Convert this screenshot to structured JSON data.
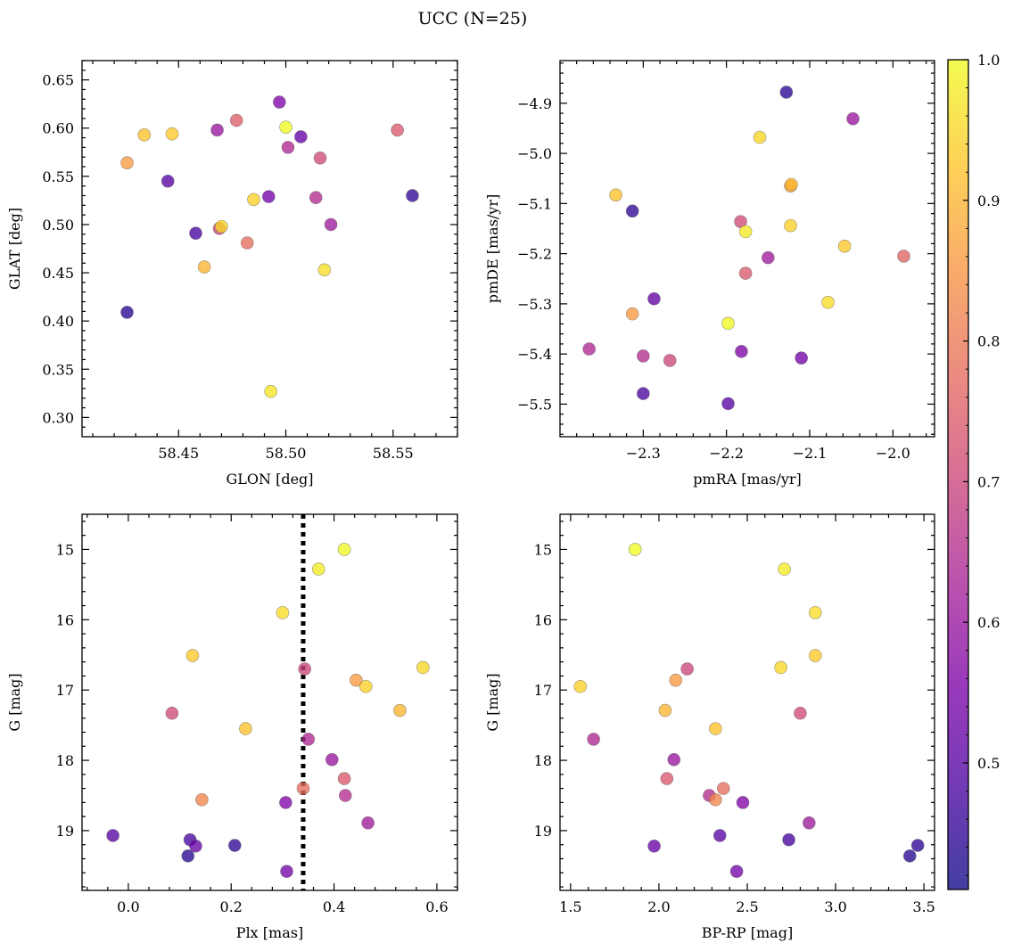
{
  "suptitle": "UCC (N=25)",
  "colorbar": {
    "colormap": "plasma",
    "range": [
      0.41,
      1.0
    ],
    "ticks": [
      0.5,
      0.6,
      0.7,
      0.8,
      0.9,
      1.0
    ],
    "tick_labels": [
      "0.5",
      "0.6",
      "0.7",
      "0.8",
      "0.9",
      "1.0"
    ]
  },
  "chart_data": [
    {
      "type": "scatter",
      "xlabel": "GLON [deg]",
      "ylabel": "GLAT [deg]",
      "xlim": [
        58.405,
        58.58
      ],
      "ylim": [
        0.28,
        0.67
      ],
      "xticks": [
        58.45,
        58.5,
        58.55
      ],
      "xtick_labels": [
        "58.45",
        "58.50",
        "58.55"
      ],
      "yticks": [
        0.3,
        0.35,
        0.4,
        0.45,
        0.5,
        0.55,
        0.6,
        0.65
      ],
      "ytick_labels": [
        "0.30",
        "0.35",
        "0.40",
        "0.45",
        "0.50",
        "0.55",
        "0.60",
        "0.65"
      ],
      "invert_y": false,
      "points": [
        {
          "x": 58.426,
          "y": 0.409,
          "c": 0.44
        },
        {
          "x": 58.559,
          "y": 0.53,
          "c": 0.45
        },
        {
          "x": 58.458,
          "y": 0.491,
          "c": 0.48
        },
        {
          "x": 58.445,
          "y": 0.545,
          "c": 0.5
        },
        {
          "x": 58.507,
          "y": 0.591,
          "c": 0.52
        },
        {
          "x": 58.492,
          "y": 0.529,
          "c": 0.54
        },
        {
          "x": 58.497,
          "y": 0.627,
          "c": 0.56
        },
        {
          "x": 58.468,
          "y": 0.598,
          "c": 0.6
        },
        {
          "x": 58.521,
          "y": 0.5,
          "c": 0.61
        },
        {
          "x": 58.501,
          "y": 0.58,
          "c": 0.64
        },
        {
          "x": 58.514,
          "y": 0.528,
          "c": 0.65
        },
        {
          "x": 58.469,
          "y": 0.496,
          "c": 0.7
        },
        {
          "x": 58.516,
          "y": 0.569,
          "c": 0.71
        },
        {
          "x": 58.552,
          "y": 0.598,
          "c": 0.74
        },
        {
          "x": 58.477,
          "y": 0.608,
          "c": 0.75
        },
        {
          "x": 58.482,
          "y": 0.481,
          "c": 0.78
        },
        {
          "x": 58.426,
          "y": 0.564,
          "c": 0.86
        },
        {
          "x": 58.462,
          "y": 0.456,
          "c": 0.9
        },
        {
          "x": 58.434,
          "y": 0.593,
          "c": 0.92
        },
        {
          "x": 58.447,
          "y": 0.594,
          "c": 0.93
        },
        {
          "x": 58.485,
          "y": 0.526,
          "c": 0.94
        },
        {
          "x": 58.47,
          "y": 0.498,
          "c": 0.95
        },
        {
          "x": 58.518,
          "y": 0.453,
          "c": 0.96
        },
        {
          "x": 58.493,
          "y": 0.327,
          "c": 0.97
        },
        {
          "x": 58.5,
          "y": 0.601,
          "c": 1.0
        }
      ]
    },
    {
      "type": "scatter",
      "xlabel": "pmRA [mas/yr]",
      "ylabel": "pmDE [mas/yr]",
      "xlim": [
        -2.4,
        -1.95
      ],
      "ylim": [
        -5.565,
        -4.815
      ],
      "xticks": [
        -2.3,
        -2.2,
        -2.1,
        -2.0
      ],
      "xtick_labels": [
        "−2.3",
        "−2.2",
        "−2.1",
        "−2.0"
      ],
      "yticks": [
        -5.5,
        -5.4,
        -5.3,
        -5.2,
        -5.1,
        -5.0,
        -4.9
      ],
      "ytick_labels": [
        "−5.5",
        "−5.4",
        "−5.3",
        "−5.2",
        "−5.1",
        "−5.0",
        "−4.9"
      ],
      "invert_y": false,
      "points": [
        {
          "x": -2.128,
          "y": -4.878,
          "c": 0.44
        },
        {
          "x": -2.313,
          "y": -5.115,
          "c": 0.45
        },
        {
          "x": -2.3,
          "y": -5.479,
          "c": 0.48
        },
        {
          "x": -2.198,
          "y": -5.499,
          "c": 0.5
        },
        {
          "x": -2.287,
          "y": -5.29,
          "c": 0.52
        },
        {
          "x": -2.11,
          "y": -5.408,
          "c": 0.54
        },
        {
          "x": -2.182,
          "y": -5.395,
          "c": 0.56
        },
        {
          "x": -2.048,
          "y": -4.931,
          "c": 0.6
        },
        {
          "x": -2.15,
          "y": -5.208,
          "c": 0.61
        },
        {
          "x": -2.365,
          "y": -5.39,
          "c": 0.64
        },
        {
          "x": -2.3,
          "y": -5.404,
          "c": 0.65
        },
        {
          "x": -2.268,
          "y": -5.413,
          "c": 0.7
        },
        {
          "x": -2.183,
          "y": -5.136,
          "c": 0.71
        },
        {
          "x": -2.177,
          "y": -5.239,
          "c": 0.74
        },
        {
          "x": -1.987,
          "y": -5.205,
          "c": 0.76
        },
        {
          "x": -2.313,
          "y": -5.32,
          "c": 0.86
        },
        {
          "x": -2.123,
          "y": -5.065,
          "c": 0.88
        },
        {
          "x": -2.122,
          "y": -5.062,
          "c": 0.9
        },
        {
          "x": -2.333,
          "y": -5.083,
          "c": 0.92
        },
        {
          "x": -2.058,
          "y": -5.185,
          "c": 0.93
        },
        {
          "x": -2.123,
          "y": -5.144,
          "c": 0.94
        },
        {
          "x": -2.16,
          "y": -4.968,
          "c": 0.95
        },
        {
          "x": -2.078,
          "y": -5.297,
          "c": 0.96
        },
        {
          "x": -2.177,
          "y": -5.156,
          "c": 0.98
        },
        {
          "x": -2.198,
          "y": -5.339,
          "c": 1.0
        }
      ]
    },
    {
      "type": "scatter",
      "xlabel": "Plx [mas]",
      "ylabel": "G [mag]",
      "xlim": [
        -0.09,
        0.64
      ],
      "ylim": [
        19.85,
        14.5
      ],
      "xticks": [
        0.0,
        0.2,
        0.4,
        0.6
      ],
      "xtick_labels": [
        "0.0",
        "0.2",
        "0.4",
        "0.6"
      ],
      "yticks": [
        15,
        16,
        17,
        18,
        19
      ],
      "ytick_labels": [
        "15",
        "16",
        "17",
        "18",
        "19"
      ],
      "invert_y": true,
      "vline": {
        "x": 0.34,
        "style": "dotted",
        "color": "#000000"
      },
      "points": [
        {
          "x": 0.116,
          "y": 19.36,
          "c": 0.44
        },
        {
          "x": 0.207,
          "y": 19.21,
          "c": 0.45
        },
        {
          "x": 0.12,
          "y": 19.13,
          "c": 0.48
        },
        {
          "x": -0.03,
          "y": 19.07,
          "c": 0.5
        },
        {
          "x": 0.131,
          "y": 19.22,
          "c": 0.52
        },
        {
          "x": 0.308,
          "y": 19.58,
          "c": 0.54
        },
        {
          "x": 0.306,
          "y": 18.6,
          "c": 0.56
        },
        {
          "x": 0.396,
          "y": 17.99,
          "c": 0.6
        },
        {
          "x": 0.466,
          "y": 18.89,
          "c": 0.61
        },
        {
          "x": 0.35,
          "y": 17.7,
          "c": 0.64
        },
        {
          "x": 0.422,
          "y": 18.5,
          "c": 0.65
        },
        {
          "x": 0.343,
          "y": 16.7,
          "c": 0.7
        },
        {
          "x": 0.085,
          "y": 17.33,
          "c": 0.71
        },
        {
          "x": 0.42,
          "y": 18.26,
          "c": 0.74
        },
        {
          "x": 0.34,
          "y": 18.4,
          "c": 0.78
        },
        {
          "x": 0.143,
          "y": 18.56,
          "c": 0.82
        },
        {
          "x": 0.443,
          "y": 16.86,
          "c": 0.86
        },
        {
          "x": 0.528,
          "y": 17.29,
          "c": 0.9
        },
        {
          "x": 0.228,
          "y": 17.55,
          "c": 0.92
        },
        {
          "x": 0.125,
          "y": 16.51,
          "c": 0.93
        },
        {
          "x": 0.462,
          "y": 16.95,
          "c": 0.94
        },
        {
          "x": 0.573,
          "y": 16.68,
          "c": 0.95
        },
        {
          "x": 0.3,
          "y": 15.9,
          "c": 0.96
        },
        {
          "x": 0.37,
          "y": 15.28,
          "c": 0.98
        },
        {
          "x": 0.42,
          "y": 15.0,
          "c": 1.0
        }
      ]
    },
    {
      "type": "scatter",
      "xlabel": "BP-RP [mag]",
      "ylabel": "G [mag]",
      "xlim": [
        1.44,
        3.56
      ],
      "ylim": [
        19.85,
        14.5
      ],
      "xticks": [
        1.5,
        2.0,
        2.5,
        3.0,
        3.5
      ],
      "xtick_labels": [
        "1.5",
        "2.0",
        "2.5",
        "3.0",
        "3.5"
      ],
      "yticks": [
        15,
        16,
        17,
        18,
        19
      ],
      "ytick_labels": [
        "15",
        "16",
        "17",
        "18",
        "19"
      ],
      "invert_y": true,
      "points": [
        {
          "x": 3.42,
          "y": 19.36,
          "c": 0.44
        },
        {
          "x": 3.465,
          "y": 19.21,
          "c": 0.45
        },
        {
          "x": 2.735,
          "y": 19.13,
          "c": 0.48
        },
        {
          "x": 2.345,
          "y": 19.07,
          "c": 0.5
        },
        {
          "x": 1.973,
          "y": 19.22,
          "c": 0.52
        },
        {
          "x": 2.44,
          "y": 19.58,
          "c": 0.54
        },
        {
          "x": 2.475,
          "y": 18.6,
          "c": 0.56
        },
        {
          "x": 2.085,
          "y": 17.99,
          "c": 0.6
        },
        {
          "x": 2.85,
          "y": 18.89,
          "c": 0.61
        },
        {
          "x": 1.63,
          "y": 17.7,
          "c": 0.64
        },
        {
          "x": 2.285,
          "y": 18.5,
          "c": 0.65
        },
        {
          "x": 2.16,
          "y": 16.7,
          "c": 0.7
        },
        {
          "x": 2.8,
          "y": 17.33,
          "c": 0.71
        },
        {
          "x": 2.045,
          "y": 18.26,
          "c": 0.74
        },
        {
          "x": 2.365,
          "y": 18.4,
          "c": 0.78
        },
        {
          "x": 2.32,
          "y": 18.56,
          "c": 0.82
        },
        {
          "x": 2.095,
          "y": 16.86,
          "c": 0.86
        },
        {
          "x": 2.035,
          "y": 17.29,
          "c": 0.9
        },
        {
          "x": 2.32,
          "y": 17.55,
          "c": 0.92
        },
        {
          "x": 2.885,
          "y": 16.51,
          "c": 0.93
        },
        {
          "x": 1.555,
          "y": 16.95,
          "c": 0.94
        },
        {
          "x": 2.69,
          "y": 16.68,
          "c": 0.95
        },
        {
          "x": 2.885,
          "y": 15.9,
          "c": 0.96
        },
        {
          "x": 2.71,
          "y": 15.28,
          "c": 0.98
        },
        {
          "x": 1.865,
          "y": 15.0,
          "c": 1.0
        }
      ]
    }
  ]
}
